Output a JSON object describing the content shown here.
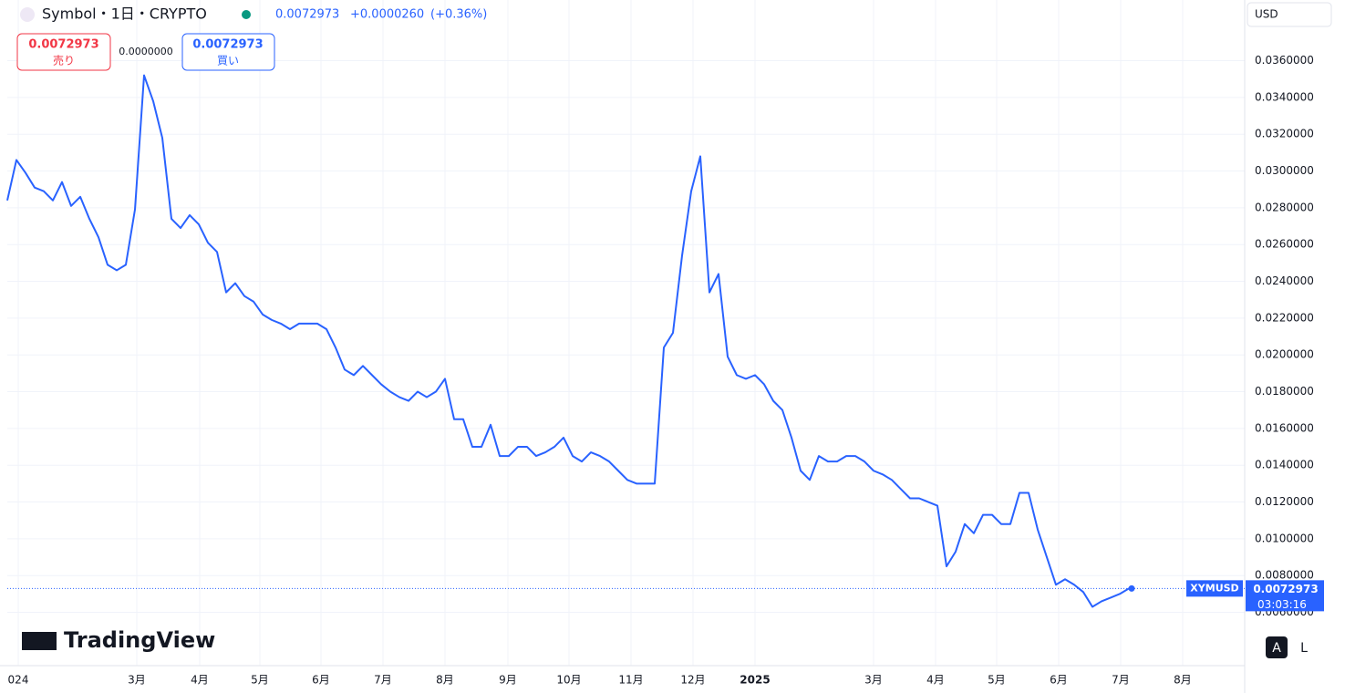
{
  "header": {
    "symbol": "Symbol・1日・CRYPTO",
    "price": "0.0072973",
    "change": "+0.0000260",
    "change_pct": "(+0.36%)"
  },
  "trade": {
    "sell_price": "0.0072973",
    "sell_label": "売り",
    "spread": "0.0000000",
    "buy_price": "0.0072973",
    "buy_label": "買い"
  },
  "currency": "USD",
  "price_label": {
    "price": "0.0072973",
    "countdown": "03:03:16"
  },
  "logo": "TradingView",
  "scale_buttons": [
    "A",
    "L"
  ],
  "chart_data": {
    "type": "line",
    "series": [
      {
        "name": "XYMUSD",
        "color": "#2962ff",
        "values": [
          0.0284,
          0.0306,
          0.0299,
          0.0291,
          0.0289,
          0.0284,
          0.0294,
          0.0281,
          0.0286,
          0.0274,
          0.0264,
          0.0249,
          0.0246,
          0.0249,
          0.0279,
          0.0352,
          0.0338,
          0.0318,
          0.0274,
          0.0269,
          0.0276,
          0.0271,
          0.0261,
          0.0256,
          0.0234,
          0.0239,
          0.0232,
          0.0229,
          0.0222,
          0.0219,
          0.0217,
          0.0214,
          0.0217,
          0.0217,
          0.0217,
          0.0214,
          0.0204,
          0.0192,
          0.0189,
          0.0194,
          0.0189,
          0.0184,
          0.018,
          0.0177,
          0.0175,
          0.018,
          0.0177,
          0.018,
          0.0187,
          0.0165,
          0.0165,
          0.015,
          0.015,
          0.0162,
          0.0145,
          0.0145,
          0.015,
          0.015,
          0.0145,
          0.0147,
          0.015,
          0.0155,
          0.0145,
          0.0142,
          0.0147,
          0.0145,
          0.0142,
          0.0137,
          0.0132,
          0.013,
          0.013,
          0.013,
          0.0204,
          0.0212,
          0.0254,
          0.0289,
          0.0308,
          0.0234,
          0.0244,
          0.0199,
          0.0189,
          0.0187,
          0.0189,
          0.0184,
          0.0175,
          0.017,
          0.0155,
          0.0137,
          0.0132,
          0.0145,
          0.0142,
          0.0142,
          0.0145,
          0.0145,
          0.0142,
          0.0137,
          0.0135,
          0.0132,
          0.0127,
          0.0122,
          0.0122,
          0.012,
          0.0118,
          0.0085,
          0.0093,
          0.0108,
          0.0103,
          0.0113,
          0.0113,
          0.0108,
          0.0108,
          0.0125,
          0.0125,
          0.0105,
          0.009,
          0.0075,
          0.0078,
          0.0075,
          0.0071,
          0.0063,
          0.0066,
          0.0068,
          0.007,
          0.0072973
        ]
      }
    ],
    "xlim": [
      0,
      135.7
    ],
    "xticks": [
      {
        "value": 1.2,
        "label": "024"
      },
      {
        "value": 14.2,
        "label": "3月"
      },
      {
        "value": 21.1,
        "label": "4月"
      },
      {
        "value": 27.7,
        "label": "5月"
      },
      {
        "value": 34.4,
        "label": "6月"
      },
      {
        "value": 41.2,
        "label": "7月"
      },
      {
        "value": 48,
        "label": "8月"
      },
      {
        "value": 54.9,
        "label": "9月"
      },
      {
        "value": 61.6,
        "label": "10月"
      },
      {
        "value": 68.4,
        "label": "11月"
      },
      {
        "value": 75.2,
        "label": "12月"
      },
      {
        "value": 82,
        "label": "2025"
      },
      {
        "value": 95,
        "label": "3月"
      },
      {
        "value": 101.8,
        "label": "4月"
      },
      {
        "value": 108.5,
        "label": "5月"
      },
      {
        "value": 115.3,
        "label": "6月"
      },
      {
        "value": 122.1,
        "label": "7月"
      },
      {
        "value": 128.9,
        "label": "8月"
      }
    ],
    "ylim": [
      0.0031,
      0.0393
    ],
    "yticks": [
      {
        "value": 0.006,
        "label": "0.0060000"
      },
      {
        "value": 0.008,
        "label": "0.0080000"
      },
      {
        "value": 0.01,
        "label": "0.0100000"
      },
      {
        "value": 0.012,
        "label": "0.0120000"
      },
      {
        "value": 0.014,
        "label": "0.0140000"
      },
      {
        "value": 0.016,
        "label": "0.0160000"
      },
      {
        "value": 0.018,
        "label": "0.0180000"
      },
      {
        "value": 0.02,
        "label": "0.0200000"
      },
      {
        "value": 0.022,
        "label": "0.0220000"
      },
      {
        "value": 0.024,
        "label": "0.0240000"
      },
      {
        "value": 0.026,
        "label": "0.0260000"
      },
      {
        "value": 0.028,
        "label": "0.0280000"
      },
      {
        "value": 0.03,
        "label": "0.0300000"
      },
      {
        "value": 0.032,
        "label": "0.0320000"
      },
      {
        "value": 0.034,
        "label": "0.0340000"
      },
      {
        "value": 0.036,
        "label": "0.0360000"
      }
    ],
    "grid": true
  }
}
